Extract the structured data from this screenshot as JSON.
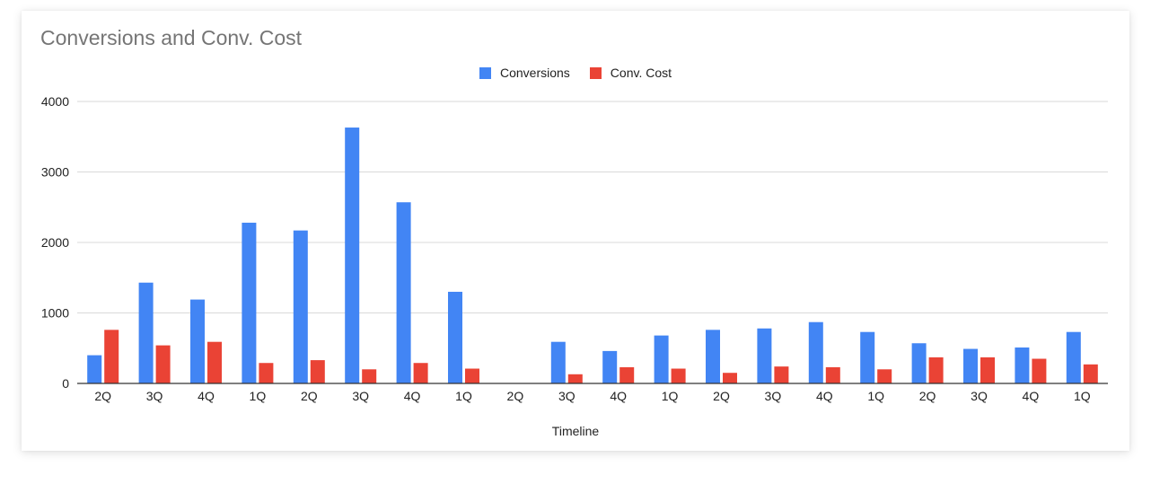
{
  "chart_data": {
    "type": "bar",
    "title": "Conversions and Conv. Cost",
    "xlabel": "Timeline",
    "ylabel": "",
    "ylim": [
      0,
      4000
    ],
    "yticks": [
      0,
      1000,
      2000,
      3000,
      4000
    ],
    "grid": true,
    "legend_position": "top",
    "categories": [
      "2Q",
      "3Q",
      "4Q",
      "1Q",
      "2Q",
      "3Q",
      "4Q",
      "1Q",
      "2Q",
      "3Q",
      "4Q",
      "1Q",
      "2Q",
      "3Q",
      "4Q",
      "1Q",
      "2Q",
      "3Q",
      "4Q",
      "1Q"
    ],
    "series": [
      {
        "name": "Conversions",
        "color": "#4285f4",
        "values": [
          400,
          1430,
          1190,
          2280,
          2170,
          3630,
          2570,
          1300,
          0,
          590,
          460,
          680,
          760,
          780,
          870,
          730,
          570,
          490,
          510,
          730
        ]
      },
      {
        "name": "Conv. Cost",
        "color": "#ea4335",
        "values": [
          760,
          540,
          590,
          290,
          330,
          200,
          290,
          210,
          0,
          130,
          230,
          210,
          150,
          240,
          230,
          200,
          370,
          370,
          350,
          270
        ]
      }
    ]
  }
}
